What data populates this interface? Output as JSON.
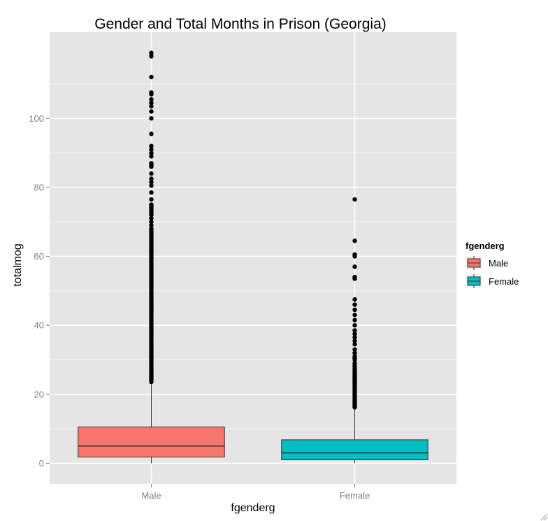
{
  "chart_data": {
    "type": "boxplot",
    "title": "Gender and Total Months in Prison (Georgia)",
    "xlabel": "fgenderg",
    "ylabel": "totalmog",
    "categories": [
      "Male",
      "Female"
    ],
    "ylim": [
      -6,
      125
    ],
    "yticks": [
      0,
      20,
      40,
      60,
      80,
      100
    ],
    "grid": true,
    "legend": {
      "title": "fgenderg",
      "placement": "right",
      "entries": [
        "Male",
        "Female"
      ]
    },
    "colors": {
      "Male": "#f8766d",
      "Female": "#00bfc4",
      "panel": "#e5e5e5",
      "grid": "#ffffff"
    },
    "series": [
      {
        "name": "Male",
        "min": 0,
        "q1": 1.8,
        "median": 5,
        "q3": 10.5,
        "max": 23.5,
        "outliers": [
          23.6,
          24,
          24.5,
          25,
          25.5,
          26,
          26.5,
          27,
          27.5,
          28,
          28.5,
          29,
          29.5,
          30,
          30.5,
          31,
          31.5,
          32,
          32.5,
          33,
          33.5,
          34,
          34.5,
          35,
          35.5,
          36,
          36.5,
          37,
          37.5,
          38,
          38.5,
          39,
          39.5,
          40,
          40.5,
          41,
          41.5,
          42,
          42.5,
          43,
          43.5,
          44,
          44.5,
          45,
          45.5,
          46,
          46.5,
          47,
          47.5,
          48,
          48.5,
          49,
          49.5,
          50,
          50.5,
          51,
          51.5,
          52,
          52.5,
          53,
          53.5,
          54,
          54.5,
          55,
          55.5,
          56,
          56.5,
          57,
          57.5,
          58,
          58.5,
          59,
          59.5,
          60,
          60.5,
          61,
          61.5,
          62,
          62.5,
          63,
          63.5,
          64,
          64.5,
          65,
          65.5,
          66,
          66.5,
          67,
          67.5,
          68,
          69,
          70,
          71,
          72,
          72.5,
          73,
          73.5,
          74,
          74.5,
          75,
          76.5,
          78.5,
          80.5,
          81.5,
          82.5,
          84,
          86,
          86.5,
          87,
          89,
          90,
          91,
          92,
          95.5,
          100,
          102,
          103.5,
          104.5,
          105.5,
          107,
          107.5,
          112,
          118,
          119
        ]
      },
      {
        "name": "Female",
        "min": 0,
        "q1": 1,
        "median": 3,
        "q3": 6.8,
        "max": 16,
        "outliers": [
          16.2,
          16.6,
          17,
          17.4,
          17.8,
          18.2,
          18.6,
          19,
          19.4,
          19.8,
          20.2,
          20.6,
          21,
          21.4,
          21.8,
          22.2,
          22.6,
          23,
          23.4,
          23.8,
          24.2,
          24.6,
          25,
          25.4,
          25.8,
          26.2,
          26.6,
          27,
          27.5,
          28,
          28.5,
          29,
          30,
          30.5,
          31,
          32,
          33,
          34.5,
          35.5,
          36.5,
          37.5,
          38.5,
          40,
          41.5,
          43,
          44.5,
          46,
          47.5,
          53.5,
          54,
          57,
          60,
          60.5,
          64.5,
          76.5
        ]
      }
    ]
  }
}
